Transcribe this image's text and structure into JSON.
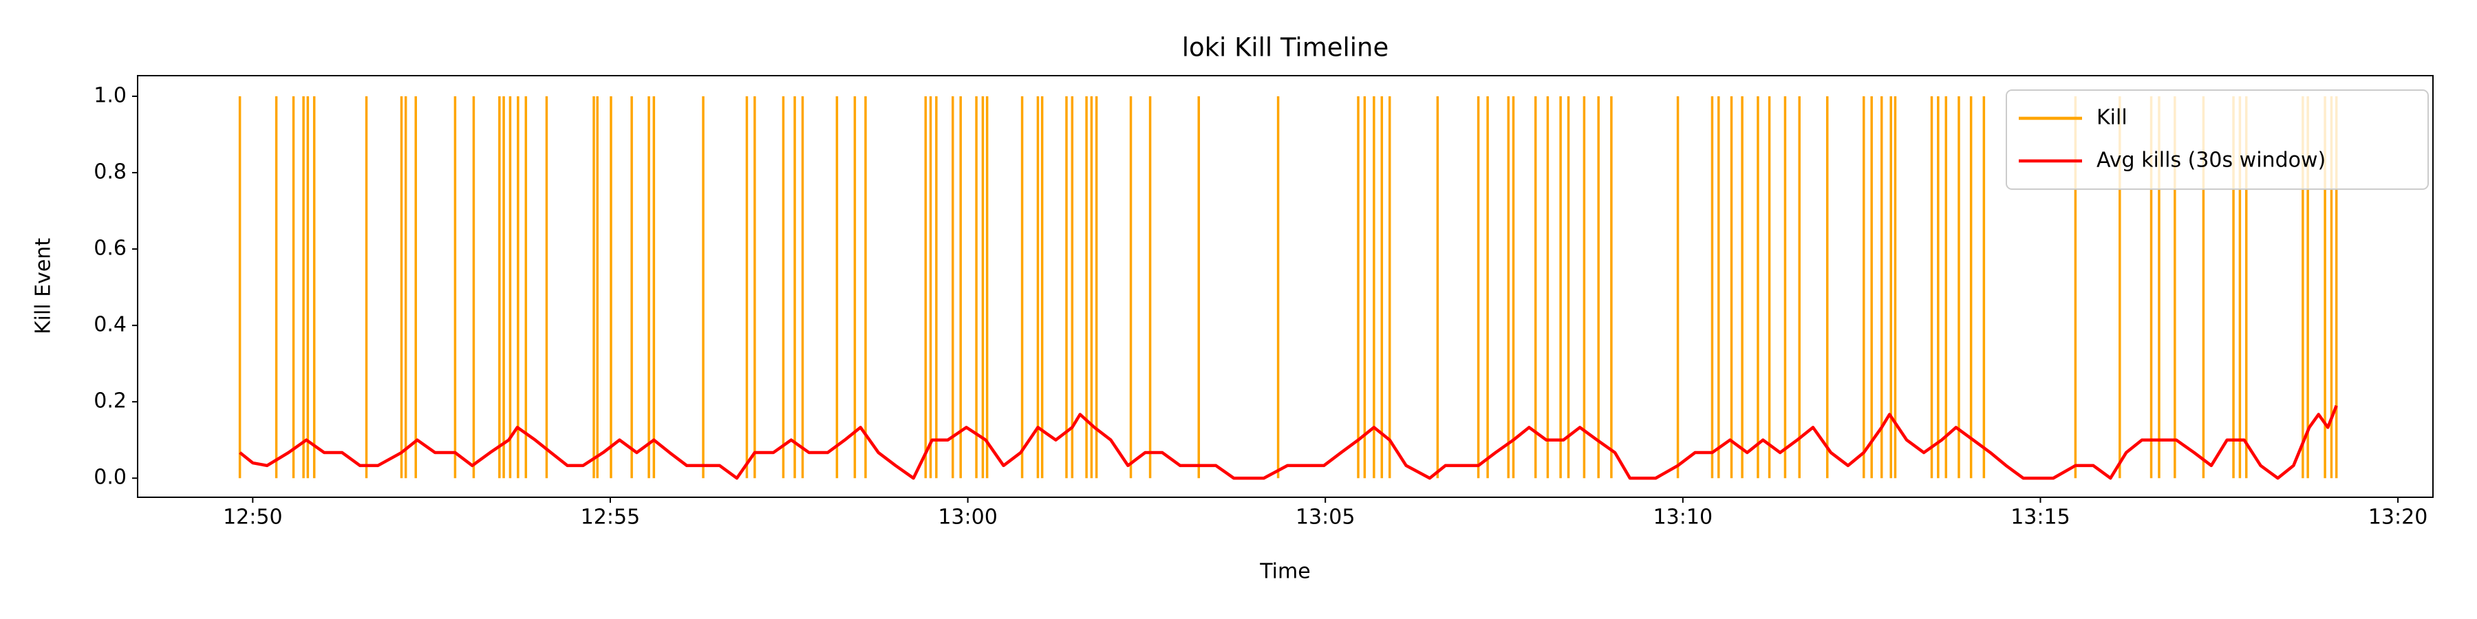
{
  "chart_data": {
    "type": "line",
    "title": "loki Kill Timeline",
    "xlabel": "Time",
    "ylabel": "Kill Event",
    "xlim": [
      768.39,
      800.49
    ],
    "ylim": [
      -0.05,
      1.054
    ],
    "xticks": [
      {
        "value": 770,
        "label": "12:50"
      },
      {
        "value": 775,
        "label": "12:55"
      },
      {
        "value": 780,
        "label": "13:00"
      },
      {
        "value": 785,
        "label": "13:05"
      },
      {
        "value": 790,
        "label": "13:10"
      },
      {
        "value": 795,
        "label": "13:15"
      },
      {
        "value": 800,
        "label": "13:20"
      }
    ],
    "yticks": [
      {
        "value": 0,
        "label": "0.0"
      },
      0.2,
      0.4,
      0.6,
      0.8,
      {
        "value": 1,
        "label": "1.0"
      }
    ],
    "grid": false,
    "legend": "upper right",
    "series": [
      {
        "name": "Kill",
        "color": "orange",
        "style": "vlines",
        "x": [
          769.82,
          770.33,
          770.57,
          770.71,
          770.77,
          770.86,
          771.59,
          772.08,
          772.14,
          772.28,
          772.83,
          773.09,
          773.45,
          773.51,
          773.6,
          773.71,
          773.82,
          774.11,
          774.77,
          774.82,
          775.01,
          775.3,
          775.54,
          775.61,
          776.3,
          776.91,
          777.02,
          777.42,
          777.58,
          777.69,
          778.17,
          778.42,
          778.57,
          779.41,
          779.48,
          779.56,
          779.79,
          779.9,
          780.12,
          780.21,
          780.27,
          780.76,
          780.98,
          781.04,
          781.38,
          781.46,
          781.66,
          781.73,
          781.8,
          782.28,
          782.55,
          783.23,
          784.34,
          785.46,
          785.55,
          785.68,
          785.79,
          785.9,
          786.57,
          787.14,
          787.27,
          787.56,
          787.63,
          787.94,
          788.11,
          788.29,
          788.4,
          788.62,
          788.82,
          789.0,
          789.93,
          790.41,
          790.5,
          790.68,
          790.83,
          791.05,
          791.21,
          791.43,
          791.63,
          792.02,
          792.53,
          792.64,
          792.78,
          792.91,
          792.97,
          793.48,
          793.57,
          793.68,
          793.86,
          794.03,
          794.21,
          795.49,
          796.11,
          796.55,
          796.66,
          796.88,
          797.28,
          797.7,
          797.79,
          797.88,
          798.67,
          798.74,
          798.98,
          799.07,
          799.14
        ],
        "values": [
          1,
          1,
          1,
          1,
          1,
          1,
          1,
          1,
          1,
          1,
          1,
          1,
          1,
          1,
          1,
          1,
          1,
          1,
          1,
          1,
          1,
          1,
          1,
          1,
          1,
          1,
          1,
          1,
          1,
          1,
          1,
          1,
          1,
          1,
          1,
          1,
          1,
          1,
          1,
          1,
          1,
          1,
          1,
          1,
          1,
          1,
          1,
          1,
          1,
          1,
          1,
          1,
          1,
          1,
          1,
          1,
          1,
          1,
          1,
          1,
          1,
          1,
          1,
          1,
          1,
          1,
          1,
          1,
          1,
          1,
          1,
          1,
          1,
          1,
          1,
          1,
          1,
          1,
          1,
          1,
          1,
          1,
          1,
          1,
          1,
          1,
          1,
          1,
          1,
          1,
          1,
          1,
          1,
          1,
          1,
          1,
          1,
          1,
          1,
          1,
          1,
          1,
          1,
          1,
          1
        ]
      },
      {
        "name": "Avg kills (30s window)",
        "color": "red",
        "style": "line",
        "x": [
          769.82,
          770.0,
          770.2,
          770.5,
          770.75,
          771.0,
          771.25,
          771.5,
          771.75,
          772.08,
          772.3,
          772.55,
          772.83,
          773.07,
          773.32,
          773.58,
          773.7,
          773.95,
          774.17,
          774.4,
          774.62,
          774.9,
          775.13,
          775.37,
          775.61,
          775.83,
          776.07,
          776.3,
          776.53,
          776.77,
          777.02,
          777.28,
          777.53,
          777.78,
          778.04,
          778.28,
          778.5,
          778.75,
          778.99,
          779.24,
          779.5,
          779.72,
          779.98,
          780.25,
          780.5,
          780.74,
          780.98,
          781.23,
          781.46,
          781.57,
          781.77,
          782.0,
          782.24,
          782.48,
          782.72,
          782.97,
          783.23,
          783.47,
          783.72,
          784.14,
          784.47,
          784.71,
          784.98,
          785.22,
          785.46,
          785.68,
          785.9,
          786.13,
          786.46,
          786.68,
          786.92,
          787.14,
          787.38,
          787.63,
          787.85,
          788.09,
          788.33,
          788.56,
          788.8,
          789.05,
          789.26,
          789.62,
          789.93,
          790.17,
          790.41,
          790.66,
          790.9,
          791.12,
          791.36,
          791.6,
          791.82,
          792.07,
          792.31,
          792.53,
          792.78,
          792.89,
          793.13,
          793.37,
          793.62,
          793.82,
          794.06,
          794.3,
          794.52,
          794.76,
          795.18,
          795.49,
          795.74,
          795.98,
          796.2,
          796.42,
          796.66,
          796.9,
          797.15,
          797.39,
          797.61,
          797.85,
          798.08,
          798.32,
          798.54,
          798.76,
          798.89,
          799.02,
          799.14
        ],
        "values": [
          0.067,
          0.04,
          0.033,
          0.067,
          0.1,
          0.067,
          0.067,
          0.033,
          0.033,
          0.067,
          0.1,
          0.067,
          0.067,
          0.033,
          0.067,
          0.1,
          0.133,
          0.1,
          0.067,
          0.033,
          0.033,
          0.067,
          0.1,
          0.067,
          0.1,
          0.067,
          0.033,
          0.033,
          0.033,
          0,
          0.067,
          0.067,
          0.1,
          0.067,
          0.067,
          0.1,
          0.133,
          0.067,
          0.033,
          0,
          0.1,
          0.1,
          0.133,
          0.1,
          0.033,
          0.067,
          0.133,
          0.1,
          0.133,
          0.167,
          0.133,
          0.1,
          0.033,
          0.067,
          0.067,
          0.033,
          0.033,
          0.033,
          0,
          0,
          0.033,
          0.033,
          0.033,
          0.067,
          0.1,
          0.133,
          0.1,
          0.033,
          0,
          0.033,
          0.033,
          0.033,
          0.067,
          0.1,
          0.133,
          0.1,
          0.1,
          0.133,
          0.1,
          0.067,
          0,
          0,
          0.033,
          0.067,
          0.067,
          0.1,
          0.067,
          0.1,
          0.067,
          0.1,
          0.133,
          0.067,
          0.033,
          0.067,
          0.133,
          0.167,
          0.1,
          0.067,
          0.1,
          0.133,
          0.1,
          0.067,
          0.033,
          0,
          0,
          0.033,
          0.033,
          0,
          0.067,
          0.1,
          0.1,
          0.1,
          0.067,
          0.033,
          0.1,
          0.1,
          0.033,
          0,
          0.033,
          0.133,
          0.167,
          0.133,
          0.19
        ]
      }
    ]
  }
}
